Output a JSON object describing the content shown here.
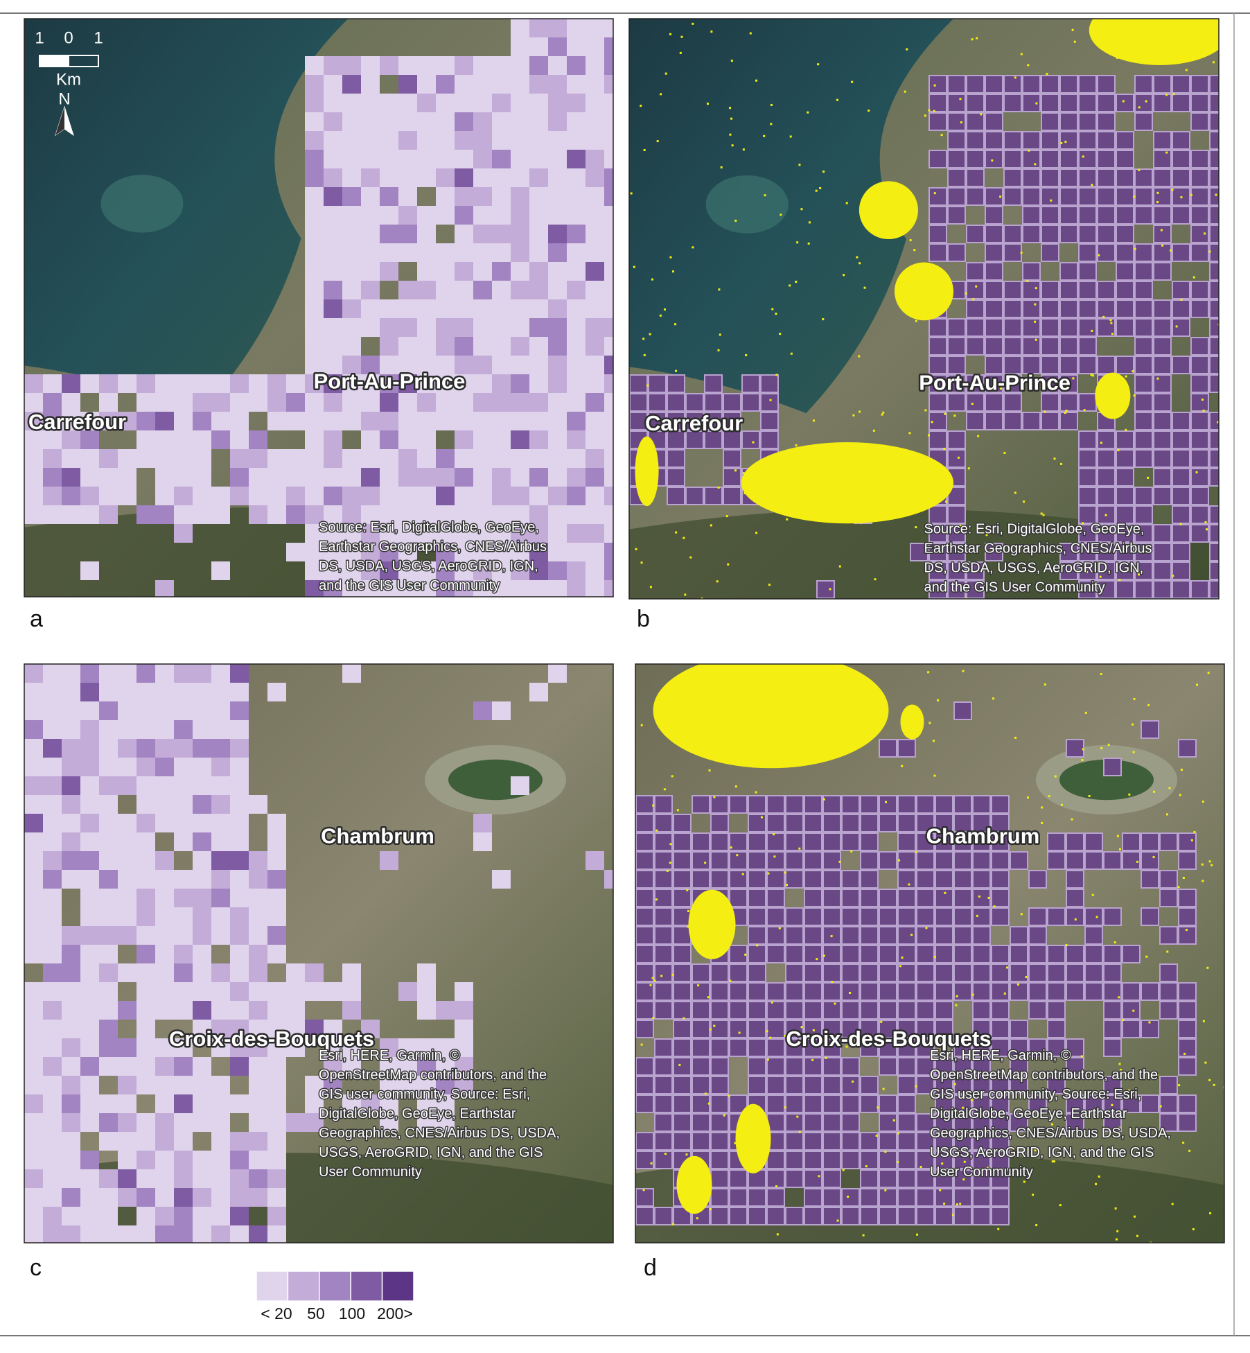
{
  "panels": [
    {
      "label": "a",
      "places": [
        "Port-Au-Prince",
        "Carrefour"
      ],
      "attribution": [
        "Source: Esri, DigitalGlobe, GeoEye,",
        "Earthstar Geographics, CNES/Airbus",
        "DS, USDA, USGS, AeroGRID, IGN,",
        "and the GIS User Community"
      ]
    },
    {
      "label": "b",
      "places": [
        "Port-Au-Prince",
        "Carrefour"
      ],
      "attribution": [
        "Source: Esri, DigitalGlobe, GeoEye,",
        "Earthstar Geographics, CNES/Airbus",
        "DS, USDA, USGS, AeroGRID, IGN,",
        "and the GIS User Community"
      ]
    },
    {
      "label": "c",
      "places": [
        "Chambrum",
        "Croix-des-Bouquets"
      ],
      "attribution": [
        "Esri, HERE, Garmin, ©",
        "OpenStreetMap contributors, and the",
        "GIS user community, Source: Esri,",
        "DigitalGlobe, GeoEye, Earthstar",
        "Geographics, CNES/Airbus DS, USDA,",
        "USGS, AeroGRID, IGN, and the GIS",
        "User Community"
      ]
    },
    {
      "label": "d",
      "places": [
        "Chambrum",
        "Croix-des-Bouquets"
      ],
      "attribution": [
        "Esri, HERE, Garmin, ©",
        "OpenStreetMap contributors, and the",
        "GIS user community, Source: Esri,",
        "DigitalGlobe, GeoEye, Earthstar",
        "Geographics, CNES/Airbus DS, USDA,",
        "USGS, AeroGRID, IGN, and the GIS",
        "User Community"
      ]
    }
  ],
  "scale_bar": {
    "ticks": [
      "1",
      "0",
      "1"
    ],
    "unit": "Km",
    "north": "N"
  },
  "legend": {
    "colors": [
      "#e0d4ec",
      "#c4acd9",
      "#a384c2",
      "#7f5ba4",
      "#5d3586"
    ],
    "labels": [
      "< 20",
      "50",
      "100",
      "200>"
    ]
  }
}
